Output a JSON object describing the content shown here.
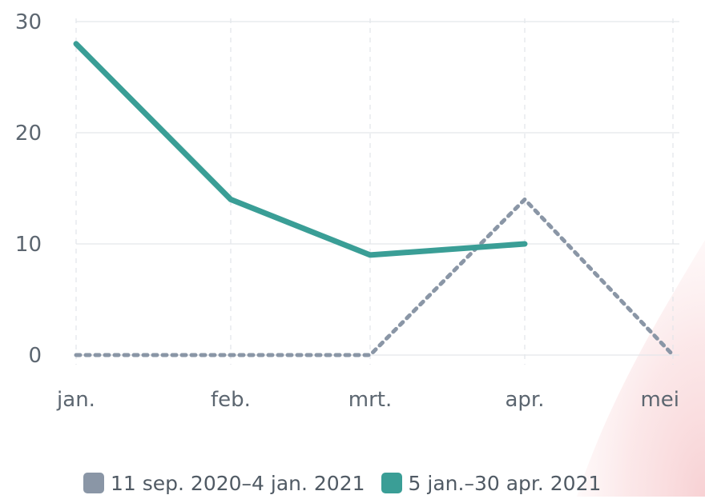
{
  "chart_data": {
    "type": "line",
    "categories": [
      "jan.",
      "feb.",
      "mrt.",
      "apr.",
      "mei"
    ],
    "ylim": [
      0,
      30
    ],
    "yticks": [
      0,
      10,
      20,
      30
    ],
    "grid": true,
    "legend_position": "bottom",
    "series": [
      {
        "name": "11 sep. 2020–4 jan. 2021",
        "values": [
          0,
          0,
          0,
          14,
          0
        ],
        "color": "#8a96a6",
        "style": "dotted"
      },
      {
        "name": "5 jan.–30 apr. 2021",
        "values": [
          28,
          14,
          9,
          10,
          null
        ],
        "color": "#3a9e96",
        "style": "solid"
      }
    ]
  }
}
